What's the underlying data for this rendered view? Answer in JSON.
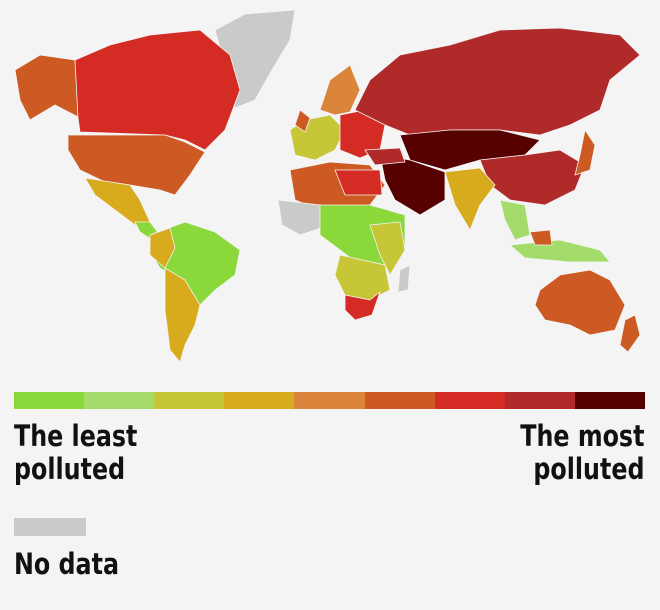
{
  "legend": {
    "least_label_line1": "The least",
    "least_label_line2": "polluted",
    "most_label_line1": "The most",
    "most_label_line2": "polluted",
    "no_data_label": "No data",
    "no_data_color": "#c9cbc8",
    "scale_colors": [
      "#8ad83a",
      "#a4dc6c",
      "#c6c637",
      "#d8aa1e",
      "#db853a",
      "#cc5a22",
      "#d42b25",
      "#b02a2a",
      "#560000"
    ]
  }
}
